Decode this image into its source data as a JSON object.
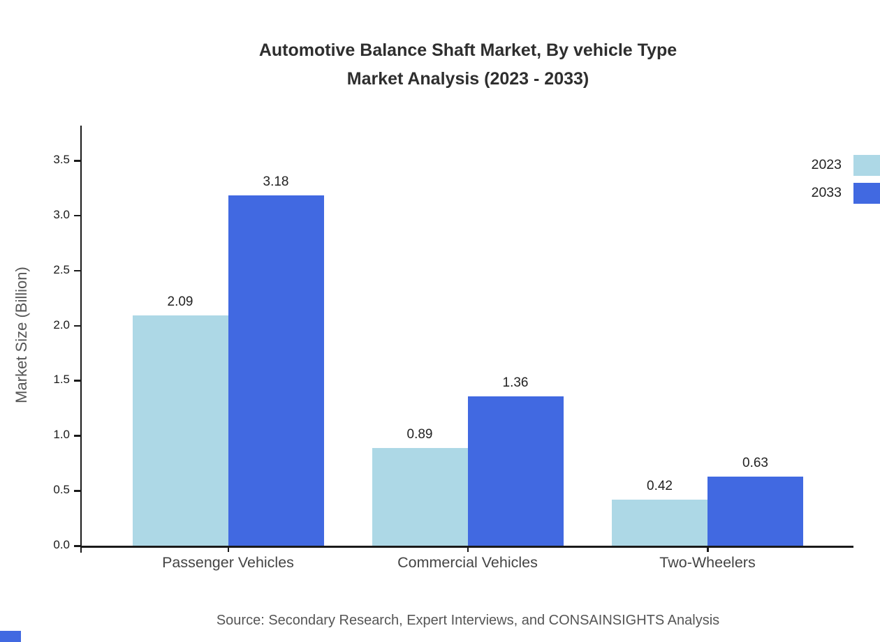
{
  "title": {
    "line1": "Automotive Balance Shaft Market, By vehicle Type",
    "line2": "Market Analysis (2023 - 2033)"
  },
  "source": "Source: Secondary Research, Expert Interviews, and CONSAINSIGHTS Analysis",
  "chart_data": {
    "type": "bar",
    "categories": [
      "Passenger Vehicles",
      "Commercial Vehicles",
      "Two-Wheelers"
    ],
    "series": [
      {
        "name": "2023",
        "color": "#ADD8E6",
        "values": [
          2.09,
          0.89,
          0.42
        ]
      },
      {
        "name": "2033",
        "color": "#4169E1",
        "values": [
          3.18,
          1.36,
          0.63
        ]
      }
    ],
    "title": "Automotive Balance Shaft Market, By vehicle Type Market Analysis (2023 - 2033)",
    "xlabel": "",
    "ylabel": "Market Size (Billion)",
    "ylim": [
      0,
      3.5
    ],
    "ytick_labels": [
      "0.0",
      "0.5",
      "1.0",
      "1.5",
      "2.0",
      "2.5",
      "3.0",
      "3.5"
    ],
    "grid": false,
    "legend_position": "top-right",
    "value_labels": true
  },
  "colors": {
    "series_2023": "#ADD8E6",
    "series_2033": "#4169E1",
    "title_text": "#2e2e2e",
    "muted_text": "#555555",
    "axis": "#1a1a1a"
  }
}
